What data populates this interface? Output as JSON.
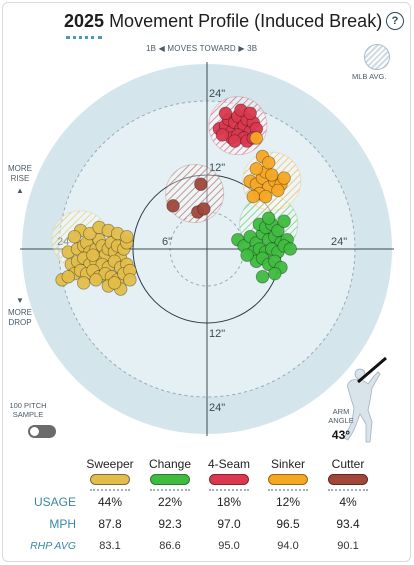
{
  "header": {
    "year": "2025",
    "title": "Movement Profile (Induced Break)",
    "help_glyph": "?"
  },
  "legend_avg": "MLB AVG.",
  "direction": {
    "left": "1B",
    "middle": "MOVES TOWARD",
    "right": "3B"
  },
  "side_labels": {
    "rise_1": "MORE",
    "rise_2": "RISE",
    "drop_1": "MORE",
    "drop_2": "DROP"
  },
  "sample": {
    "line1": "100 PITCH",
    "line2": "SAMPLE"
  },
  "arm_angle": {
    "line1": "ARM",
    "line2": "ANGLE",
    "value": "43°"
  },
  "ring_labels": {
    "top24": "24\"",
    "top12": "12\"",
    "left24": "24\"",
    "left6": "6\"",
    "right24": "24\"",
    "bottom12": "12\"",
    "bottom24": "24\""
  },
  "colors": {
    "sweeper": "#e2bd4a",
    "change": "#3fbb3f",
    "fourseam": "#d9384e",
    "sinker": "#f5a623",
    "cutter": "#a1473a"
  },
  "table": {
    "pitches": [
      "Sweeper",
      "Change",
      "4-Seam",
      "Sinker",
      "Cutter"
    ],
    "row_labels": [
      "USAGE",
      "MPH",
      "RHP AVG"
    ],
    "usage": [
      "44%",
      "22%",
      "18%",
      "12%",
      "4%"
    ],
    "mph": [
      "87.8",
      "92.3",
      "97.0",
      "96.5",
      "93.4"
    ],
    "rhp_avg": [
      "83.1",
      "86.6",
      "95.0",
      "94.0",
      "90.1"
    ]
  },
  "chart_data": {
    "type": "scatter",
    "axes": {
      "horizontal_break_in": [
        -30,
        30
      ],
      "induced_vertical_break_in": [
        -30,
        30
      ],
      "rings_in": [
        6,
        12,
        24
      ]
    },
    "series": [
      {
        "name": "Sweeper",
        "color": "#e2bd4a",
        "avg": [
          -20.5,
          1.5
        ],
        "points": [
          [
            -22.5,
            -0.5
          ],
          [
            -21,
            0
          ],
          [
            -20,
            0.5
          ],
          [
            -19.5,
            1
          ],
          [
            -19,
            -0.5
          ],
          [
            -18,
            0
          ],
          [
            -17.5,
            1.5
          ],
          [
            -17,
            0.5
          ],
          [
            -16.5,
            -1
          ],
          [
            -16,
            0
          ],
          [
            -15.5,
            1
          ],
          [
            -15,
            -0.5
          ],
          [
            -14.5,
            0.5
          ],
          [
            -14,
            -1.5
          ],
          [
            -13.5,
            0
          ],
          [
            -13,
            1
          ],
          [
            -22,
            -2.5
          ],
          [
            -21,
            -2
          ],
          [
            -20,
            -1.5
          ],
          [
            -19,
            -2.5
          ],
          [
            -18,
            -2
          ],
          [
            -17,
            -2.5
          ],
          [
            -16,
            -3
          ],
          [
            -15,
            -2
          ],
          [
            -14,
            -3
          ],
          [
            -13,
            -2.5
          ],
          [
            -21.5,
            -4
          ],
          [
            -20.5,
            -3.5
          ],
          [
            -19.5,
            -4
          ],
          [
            -18.5,
            -3.5
          ],
          [
            -17.5,
            -4.5
          ],
          [
            -16.5,
            -4
          ],
          [
            -15.5,
            -4.5
          ],
          [
            -14.5,
            -5
          ],
          [
            -13.5,
            -4
          ],
          [
            -12.5,
            -3.5
          ],
          [
            -23.5,
            -5
          ],
          [
            -22.5,
            -4.5
          ],
          [
            -20,
            -5.5
          ],
          [
            -18,
            -5
          ],
          [
            -16,
            -6
          ],
          [
            -14,
            -6.5
          ],
          [
            -20.5,
            3
          ],
          [
            -19,
            2.5
          ],
          [
            -17.5,
            3.5
          ],
          [
            -16,
            3
          ],
          [
            -14.5,
            2.5
          ],
          [
            -13,
            2
          ],
          [
            -21.5,
            2
          ],
          [
            -18.5,
            -1
          ],
          [
            -15,
            -5.5
          ],
          [
            -12.5,
            -5
          ]
        ]
      },
      {
        "name": "Change",
        "color": "#3fbb3f",
        "avg": [
          10,
          4
        ],
        "points": [
          [
            5,
            1.5
          ],
          [
            6,
            0.5
          ],
          [
            7,
            2
          ],
          [
            8,
            1
          ],
          [
            9,
            2.5
          ],
          [
            10,
            1.5
          ],
          [
            11,
            2
          ],
          [
            12,
            1
          ],
          [
            13,
            1.5
          ],
          [
            7.5,
            -0.5
          ],
          [
            8.5,
            0
          ],
          [
            9.5,
            -0.5
          ],
          [
            10.5,
            0
          ],
          [
            11.5,
            -0.5
          ],
          [
            12.5,
            0.5
          ],
          [
            8,
            -2
          ],
          [
            9,
            -1.5
          ],
          [
            10,
            -2.5
          ],
          [
            11,
            -2
          ],
          [
            12,
            -3
          ],
          [
            8.5,
            4
          ],
          [
            9.5,
            3.5
          ],
          [
            10.5,
            4
          ],
          [
            11.5,
            3
          ],
          [
            13.5,
            0
          ],
          [
            9,
            -4.5
          ],
          [
            11,
            -4
          ],
          [
            6.5,
            -1
          ],
          [
            10,
            5
          ],
          [
            12.5,
            4.5
          ]
        ]
      },
      {
        "name": "4-Seam",
        "color": "#d9384e",
        "avg": [
          5,
          20
        ],
        "points": [
          [
            2,
            19.5
          ],
          [
            3,
            20
          ],
          [
            3.5,
            21
          ],
          [
            4,
            19
          ],
          [
            4.5,
            20.5
          ],
          [
            5,
            21.5
          ],
          [
            5.5,
            19.5
          ],
          [
            6,
            20
          ],
          [
            6.5,
            21
          ],
          [
            7,
            19
          ],
          [
            7.5,
            20.5
          ],
          [
            4,
            18
          ],
          [
            5,
            18.5
          ],
          [
            6,
            18
          ],
          [
            5.5,
            22.5
          ],
          [
            3,
            22
          ],
          [
            7,
            22
          ],
          [
            8,
            19.5
          ],
          [
            4.5,
            17.5
          ],
          [
            6.5,
            17.5
          ],
          [
            2.5,
            18.5
          ],
          [
            7.5,
            18
          ]
        ]
      },
      {
        "name": "Sinker",
        "color": "#f5a623",
        "avg": [
          10.5,
          11
        ],
        "points": [
          [
            7,
            11
          ],
          [
            8,
            10.5
          ],
          [
            9,
            11.5
          ],
          [
            10,
            10
          ],
          [
            11,
            11
          ],
          [
            12,
            10.5
          ],
          [
            8.5,
            9
          ],
          [
            9.5,
            12.5
          ],
          [
            11.5,
            9.5
          ],
          [
            8,
            13
          ],
          [
            10.5,
            12
          ],
          [
            12.5,
            11.5
          ],
          [
            7.5,
            8.5
          ],
          [
            9,
            15
          ],
          [
            9.5,
            8.5
          ],
          [
            10,
            14
          ],
          [
            8,
            18
          ]
        ]
      },
      {
        "name": "Cutter",
        "color": "#a1473a",
        "avg": [
          -2,
          9
        ],
        "points": [
          [
            -5.5,
            7
          ],
          [
            -1.5,
            6
          ],
          [
            -0.5,
            6.5
          ],
          [
            -1,
            10.5
          ]
        ]
      }
    ]
  }
}
